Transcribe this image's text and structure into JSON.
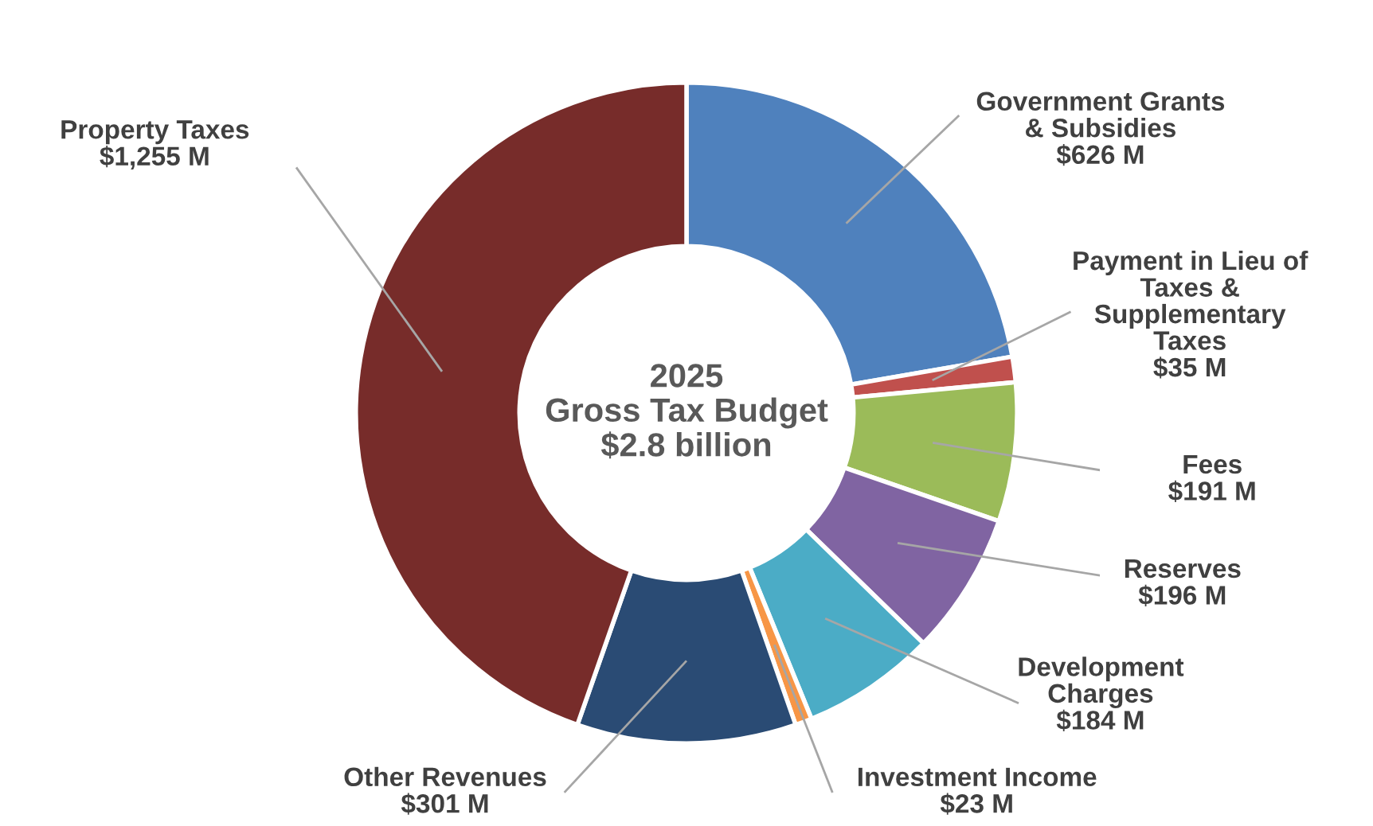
{
  "chart_data": {
    "type": "donut",
    "title": "2025\nGross Tax Budget\n$2.8 billion",
    "categories": [
      "Government Grants\n& Subsidies",
      "Payment in Lieu of\nTaxes &\nSupplementary\nTaxes",
      "Fees",
      "Reserves",
      "Development\nCharges",
      "Investment Income",
      "Other Revenues",
      "Property Taxes"
    ],
    "values": [
      626,
      35,
      191,
      196,
      184,
      23,
      301,
      1255
    ],
    "value_labels": [
      "$626 M",
      "$35 M",
      "$191 M",
      "$196 M",
      "$184 M",
      "$23 M",
      "$301 M",
      "$1,255 M"
    ],
    "colors": [
      "#4f81bd",
      "#c0504d",
      "#9bbb59",
      "#8064a2",
      "#4bacc6",
      "#f79646",
      "#2a4b74",
      "#772c2a"
    ],
    "legend": false
  }
}
